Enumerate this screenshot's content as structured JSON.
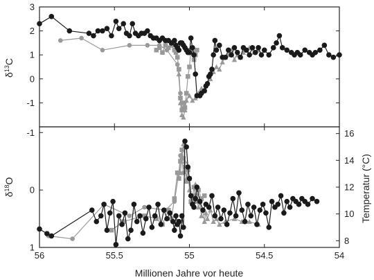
{
  "chart_data": [
    {
      "type": "line",
      "panel": "top",
      "ylabel": "δ13C",
      "ylim": [
        -2,
        3
      ],
      "yticks": [
        -1,
        0,
        1,
        2,
        3
      ],
      "xlim": [
        56,
        54
      ],
      "xticks": [
        56,
        55.5,
        55,
        54.5,
        54
      ],
      "xticklabels": [
        "",
        "",
        "",
        "",
        ""
      ],
      "grid": false,
      "legend": "none",
      "series": [
        {
          "color": "#1a1a1a",
          "marker": "circle",
          "x": [
            56.0,
            55.92,
            55.8,
            55.67,
            55.64,
            55.61,
            55.58,
            55.55,
            55.52,
            55.49,
            55.47,
            55.44,
            55.42,
            55.4,
            55.38,
            55.36,
            55.34,
            55.32,
            55.3,
            55.28,
            55.26,
            55.24,
            55.22,
            55.2,
            55.18,
            55.16,
            55.14,
            55.12,
            55.1,
            55.09,
            55.08,
            55.07,
            55.06,
            55.05,
            55.04,
            55.03,
            55.02,
            55.01,
            55.0,
            54.99,
            54.98,
            54.97,
            54.96,
            54.95,
            54.93,
            54.92,
            54.9,
            54.89,
            54.88,
            54.87,
            54.86,
            54.85,
            54.84,
            54.83,
            54.82,
            54.8,
            54.78,
            54.76,
            54.74,
            54.72,
            54.7,
            54.68,
            54.66,
            54.64,
            54.62,
            54.6,
            54.58,
            54.56,
            54.54,
            54.52,
            54.5,
            54.47,
            54.44,
            54.42,
            54.4,
            54.38,
            54.35,
            54.32,
            54.3,
            54.28,
            54.26,
            54.23,
            54.2,
            54.18,
            54.16,
            54.13,
            54.1,
            54.07,
            54.04,
            54.0
          ],
          "y": [
            2.3,
            2.6,
            2.0,
            1.9,
            1.8,
            2.0,
            2.0,
            2.1,
            1.8,
            2.4,
            2.1,
            2.3,
            1.9,
            1.8,
            2.3,
            1.9,
            1.8,
            1.9,
            1.9,
            2.0,
            1.8,
            1.7,
            1.7,
            1.6,
            1.7,
            1.6,
            1.6,
            1.5,
            1.6,
            1.4,
            1.3,
            1.2,
            1.5,
            1.5,
            1.4,
            1.3,
            1.2,
            1.1,
            1.1,
            1.7,
            1.3,
            1.0,
            0.2,
            -0.7,
            -0.7,
            -0.6,
            -0.5,
            -0.3,
            -0.2,
            0.1,
            0.2,
            0.4,
            1.0,
            1.6,
            1.2,
            1.4,
            0.9,
            0.9,
            1.2,
            1.0,
            1.3,
            1.1,
            0.9,
            1.3,
            1.2,
            1.0,
            1.3,
            1.1,
            1.3,
            1.0,
            1.2,
            1.0,
            1.3,
            1.5,
            1.8,
            1.3,
            1.2,
            1.1,
            1.0,
            1.1,
            1.0,
            1.2,
            1.1,
            1.0,
            1.1,
            1.2,
            1.4,
            1.0,
            0.9,
            1.0
          ]
        },
        {
          "color": "#999999",
          "marker": "circle",
          "x": [
            55.86,
            55.72,
            55.58,
            55.4,
            55.28,
            55.2,
            55.15,
            55.08,
            55.06,
            55.05
          ],
          "y": [
            1.6,
            1.7,
            1.2,
            1.4,
            1.4,
            1.4,
            1.2,
            0.6,
            -0.6,
            -1.3
          ]
        },
        {
          "color": "#999999",
          "marker": "square",
          "x": [
            55.22,
            55.2,
            55.18,
            55.16,
            55.14,
            55.12,
            55.1,
            55.09,
            55.08,
            55.07,
            55.06,
            55.05,
            55.04,
            55.03,
            55.02,
            55.01,
            55.0,
            54.99,
            54.98,
            54.97,
            54.96,
            54.95
          ],
          "y": [
            1.2,
            1.3,
            1.1,
            1.4,
            1.3,
            1.4,
            1.2,
            1.1,
            0.9,
            0.4,
            -0.8,
            -1.3,
            -1.0,
            -1.2,
            -0.6,
            0.1,
            0.5,
            1.2,
            1.1,
            0.8,
            1.0,
            1.2
          ]
        },
        {
          "color": "#999999",
          "marker": "triangle",
          "x": [
            55.07,
            55.06,
            55.05,
            55.04,
            55.03,
            55.02,
            55.0,
            54.98,
            54.96,
            54.94,
            54.92,
            54.9,
            54.88,
            54.86,
            54.84,
            54.82,
            54.8,
            54.78,
            54.76,
            54.74,
            54.72,
            54.7,
            54.68,
            54.66,
            54.64,
            54.62,
            54.6,
            54.57,
            54.54
          ],
          "y": [
            0.2,
            -1.0,
            -1.5,
            -1.6,
            -1.3,
            -0.9,
            -0.7,
            -0.9,
            -0.8,
            -0.6,
            -0.4,
            -0.5,
            -0.2,
            0.0,
            0.3,
            0.5,
            0.4,
            0.7,
            0.9,
            1.0,
            1.2,
            0.8,
            1.0,
            0.9,
            1.1,
            1.2,
            1.3,
            1.1,
            1.2
          ]
        }
      ]
    },
    {
      "type": "line",
      "panel": "bottom",
      "ylabel": "δ18O",
      "y2label": "Temperatur (°C)",
      "xlabel": "Millionen Jahre vor heute",
      "ylim": [
        1,
        -1.1
      ],
      "yticks": [
        -1,
        0,
        1
      ],
      "y2lim": [
        7.5,
        16.5
      ],
      "y2ticks": [
        8,
        10,
        12,
        14,
        16
      ],
      "xlim": [
        56,
        54
      ],
      "xticks": [
        56,
        55.5,
        55,
        54.5,
        54
      ],
      "xticklabels": [
        "56",
        "55.5",
        "55",
        "54.5",
        "54"
      ],
      "grid": false,
      "legend": "none",
      "series": [
        {
          "color": "#1a1a1a",
          "marker": "circle",
          "x": [
            56.0,
            55.95,
            55.92,
            55.65,
            55.62,
            55.59,
            55.57,
            55.55,
            55.53,
            55.51,
            55.49,
            55.47,
            55.45,
            55.43,
            55.41,
            55.39,
            55.37,
            55.35,
            55.33,
            55.31,
            55.29,
            55.27,
            55.25,
            55.23,
            55.21,
            55.19,
            55.17,
            55.15,
            55.13,
            55.11,
            55.1,
            55.09,
            55.08,
            55.07,
            55.06,
            55.05,
            55.04,
            55.03,
            55.02,
            55.01,
            55.0,
            54.99,
            54.98,
            54.97,
            54.96,
            54.95,
            54.93,
            54.91,
            54.89,
            54.87,
            54.85,
            54.83,
            54.81,
            54.79,
            54.77,
            54.75,
            54.73,
            54.71,
            54.69,
            54.67,
            54.65,
            54.63,
            54.61,
            54.59,
            54.57,
            54.55,
            54.53,
            54.51,
            54.49,
            54.47,
            54.45,
            54.43,
            54.41,
            54.39,
            54.37,
            54.35,
            54.33,
            54.31,
            54.29,
            54.27,
            54.25,
            54.23,
            54.21,
            54.18,
            54.15
          ],
          "y": [
            0.68,
            0.76,
            0.8,
            0.35,
            0.55,
            0.45,
            0.25,
            0.7,
            0.4,
            0.2,
            0.95,
            0.45,
            0.6,
            0.4,
            0.85,
            0.7,
            0.25,
            0.55,
            0.45,
            0.75,
            0.5,
            0.3,
            0.65,
            0.45,
            0.25,
            0.6,
            0.35,
            0.5,
            0.4,
            0.55,
            0.7,
            0.45,
            0.6,
            0.55,
            0.8,
            0.45,
            0.65,
            -0.85,
            -0.75,
            -0.4,
            -0.2,
            0.1,
            0.25,
            0.3,
            0.15,
            -0.05,
            0.2,
            0.35,
            0.25,
            0.3,
            0.1,
            0.45,
            0.3,
            0.5,
            0.35,
            0.6,
            0.4,
            0.15,
            0.45,
            0.05,
            0.35,
            0.55,
            0.25,
            0.45,
            0.3,
            0.6,
            0.35,
            0.25,
            0.4,
            0.65,
            0.2,
            0.3,
            0.25,
            0.1,
            0.4,
            0.2,
            0.3,
            0.15,
            0.2,
            0.25,
            0.15,
            0.2,
            0.25,
            0.15,
            0.2
          ]
        },
        {
          "color": "#999999",
          "marker": "circle",
          "x": [
            55.94,
            55.78,
            55.57,
            55.4,
            55.3,
            55.16,
            55.1,
            55.07,
            55.06,
            55.05,
            55.04
          ],
          "y": [
            0.8,
            0.85,
            0.25,
            0.45,
            0.3,
            0.35,
            0.2,
            -0.3,
            -0.6,
            -0.55,
            -0.3
          ]
        },
        {
          "color": "#999999",
          "marker": "square",
          "x": [
            55.52,
            55.44,
            55.3,
            55.22,
            55.18,
            55.14,
            55.12,
            55.1,
            55.08,
            55.07,
            55.06,
            55.05,
            55.04,
            55.03,
            55.02,
            55.01,
            55.0,
            54.99,
            54.98,
            54.97,
            54.96,
            54.95,
            54.94,
            54.92,
            54.9
          ],
          "y": [
            0.7,
            0.55,
            0.45,
            0.5,
            0.6,
            0.35,
            0.5,
            0.15,
            -0.3,
            -0.2,
            -0.5,
            -0.7,
            -0.55,
            -0.4,
            -0.15,
            -0.35,
            -0.2,
            0.2,
            0.15,
            -0.05,
            0.1,
            0.2,
            0.0,
            0.15,
            0.1
          ]
        },
        {
          "color": "#999999",
          "marker": "triangle",
          "x": [
            55.06,
            55.05,
            55.04,
            55.03,
            55.02,
            55.01,
            55.0,
            54.99,
            54.98,
            54.97,
            54.96,
            54.95,
            54.94,
            54.93,
            54.92,
            54.91,
            54.9,
            54.89,
            54.88,
            54.86,
            54.84,
            54.82,
            54.8,
            54.76,
            54.7,
            54.65,
            54.6,
            54.54
          ],
          "y": [
            -0.3,
            -0.6,
            -0.8,
            -0.5,
            -0.2,
            -0.4,
            0.0,
            0.2,
            0.1,
            0.25,
            -0.1,
            0.15,
            0.3,
            0.2,
            0.45,
            0.35,
            0.55,
            0.4,
            0.5,
            0.35,
            0.55,
            0.5,
            0.6,
            0.55,
            0.5,
            0.55,
            0.55,
            0.6
          ]
        }
      ]
    }
  ]
}
